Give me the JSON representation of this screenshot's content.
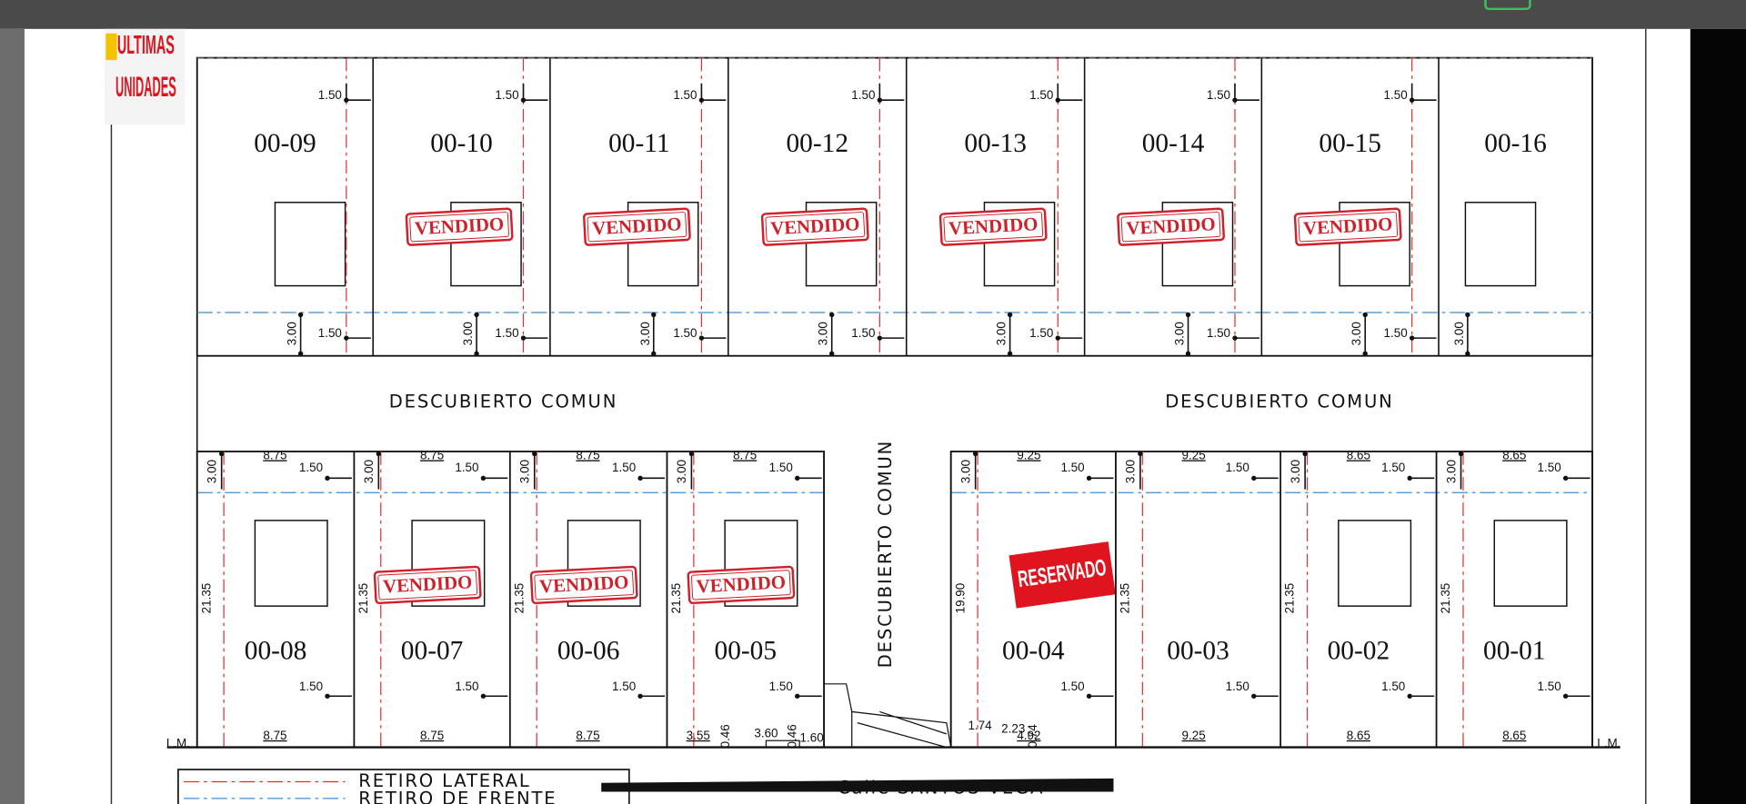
{
  "badge": {
    "line1": "ULTIMAS",
    "line2": "UNIDADES"
  },
  "top_lots": [
    {
      "label": "00-09",
      "dims": {
        "top": "1.50",
        "front": "3.00",
        "bottom": "1.50"
      }
    },
    {
      "label": "00-10",
      "status": "VENDIDO",
      "dims": {
        "top": "1.50",
        "front": "3.00",
        "bottom": "1.50"
      }
    },
    {
      "label": "00-11",
      "status": "VENDIDO",
      "dims": {
        "top": "1.50",
        "front": "3.00",
        "bottom": "1.50"
      }
    },
    {
      "label": "00-12",
      "status": "VENDIDO",
      "dims": {
        "top": "1.50",
        "front": "3.00",
        "bottom": "1.50"
      }
    },
    {
      "label": "00-13",
      "status": "VENDIDO",
      "dims": {
        "top": "1.50",
        "front": "3.00",
        "bottom": "1.50"
      }
    },
    {
      "label": "00-14",
      "status": "VENDIDO",
      "dims": {
        "top": "1.50",
        "front": "3.00",
        "bottom": "1.50"
      }
    },
    {
      "label": "00-15",
      "status": "VENDIDO",
      "dims": {
        "top": "1.50",
        "front": "3.00",
        "bottom": "1.50"
      }
    },
    {
      "label": "00-16",
      "dims": {
        "front": "3.00"
      }
    }
  ],
  "common_areas": [
    "DESCUBIERTO COMUN",
    "DESCUBIERTO COMUN",
    "DESCUBIERTO COMUN"
  ],
  "bottom_lots": [
    {
      "label": "00-08",
      "dims": {
        "top_width": "8.75",
        "front": "3.00",
        "setback": "1.50",
        "depth": "21.35",
        "rear": "1.50",
        "bottom_width": "8.75"
      }
    },
    {
      "label": "00-07",
      "status": "VENDIDO",
      "dims": {
        "top_width": "8.75",
        "front": "3.00",
        "setback": "1.50",
        "depth": "21.35",
        "rear": "1.50",
        "bottom_width": "8.75"
      }
    },
    {
      "label": "00-06",
      "status": "VENDIDO",
      "dims": {
        "top_width": "8.75",
        "front": "3.00",
        "setback": "1.50",
        "depth": "21.35",
        "rear": "1.50",
        "bottom_width": "8.75"
      }
    },
    {
      "label": "00-05",
      "status": "VENDIDO",
      "dims": {
        "top_width": "8.75",
        "front": "3.00",
        "setback": "1.50",
        "depth": "21.35",
        "rear": "1.50",
        "bottom_width": "3.55"
      }
    },
    {
      "label": "00-04",
      "status": "RESERVADO",
      "dims": {
        "top_width": "9.25",
        "front": "3.00",
        "setback": "1.50",
        "depth": "19.90",
        "rear": "1.50",
        "bottom_width": "4.92"
      }
    },
    {
      "label": "00-03",
      "dims": {
        "top_width": "9.25",
        "front": "3.00",
        "setback": "1.50",
        "depth": "21.35",
        "rear": "1.50",
        "bottom_width": "9.25"
      }
    },
    {
      "label": "00-02",
      "dims": {
        "top_width": "8.65",
        "front": "3.00",
        "setback": "1.50",
        "depth": "21.35",
        "rear": "1.50",
        "bottom_width": "8.65"
      }
    },
    {
      "label": "00-01",
      "dims": {
        "top_width": "8.65",
        "front": "3.00",
        "setback": "1.50",
        "depth": "21.35",
        "rear": "1.50",
        "bottom_width": "8.65"
      }
    }
  ],
  "entrance_dims": [
    "0.46",
    "3.60",
    "0.46",
    "1.60",
    "1.74",
    "2.23",
    "0.74"
  ],
  "line_marks": [
    "L.M.",
    "L.M."
  ],
  "legend": {
    "lateral": "RETIRO LATERAL",
    "front": "RETIRO DE FRENTE"
  },
  "street": "Calle SANTOS VEGA"
}
